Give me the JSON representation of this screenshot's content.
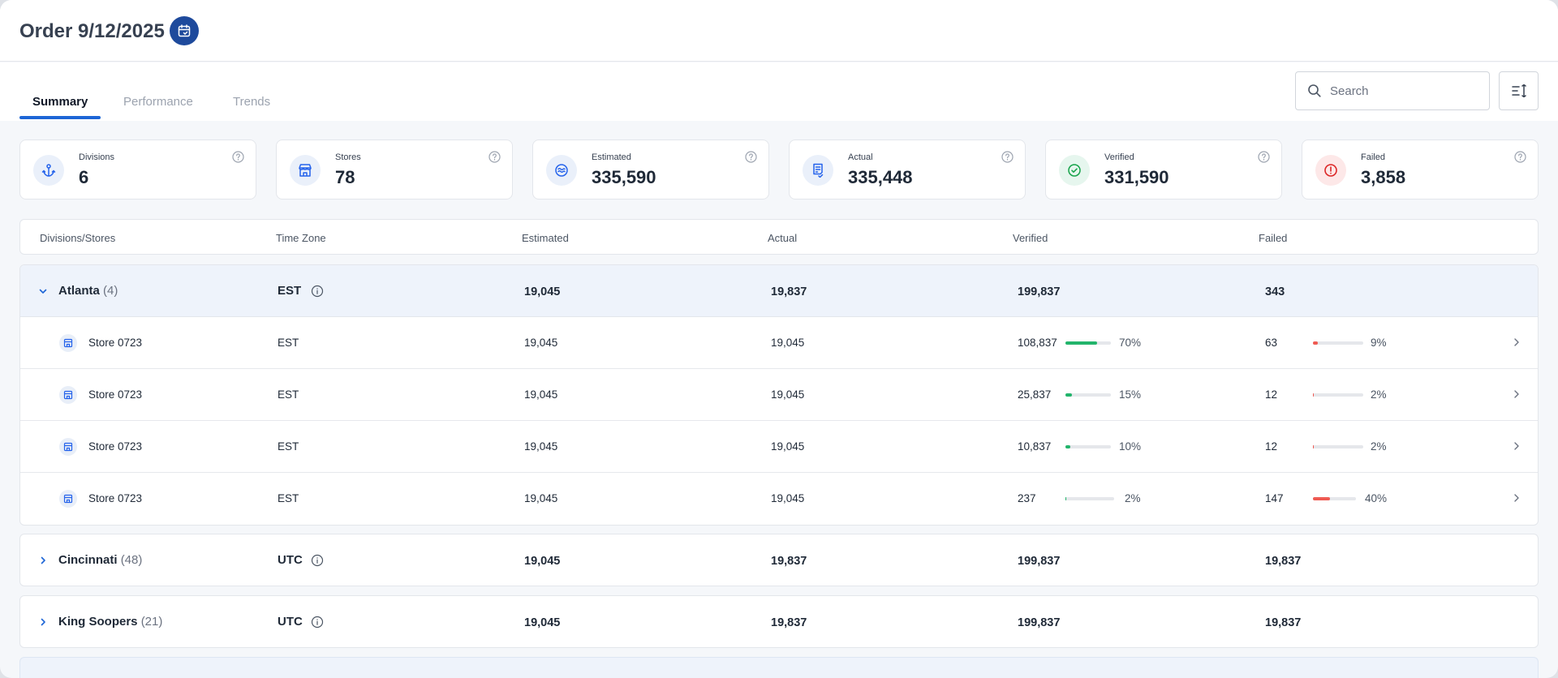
{
  "header": {
    "title": "Order 9/12/2025"
  },
  "tabs": [
    {
      "label": "Summary",
      "active": true
    },
    {
      "label": "Performance",
      "active": false
    },
    {
      "label": "Trends",
      "active": false
    }
  ],
  "search": {
    "placeholder": "Search",
    "value": ""
  },
  "cards": [
    {
      "label": "Divisions",
      "value": "6",
      "icon": "anchor-icon",
      "icon_bg": "#eaf0fa",
      "icon_color": "#2563eb"
    },
    {
      "label": "Stores",
      "value": "78",
      "icon": "store-icon",
      "icon_bg": "#eaf0fa",
      "icon_color": "#2563eb"
    },
    {
      "label": "Estimated",
      "value": "335,590",
      "icon": "estimate-icon",
      "icon_bg": "#eaf0fa",
      "icon_color": "#2563eb"
    },
    {
      "label": "Actual",
      "value": "335,448",
      "icon": "receipt-icon",
      "icon_bg": "#eaf0fa",
      "icon_color": "#2563eb"
    },
    {
      "label": "Verified",
      "value": "331,590",
      "icon": "check-circle-icon",
      "icon_bg": "#e6f6ee",
      "icon_color": "#16a34a"
    },
    {
      "label": "Failed",
      "value": "3,858",
      "icon": "alert-circle-icon",
      "icon_bg": "#fde8e8",
      "icon_color": "#dc2626"
    }
  ],
  "table": {
    "headers": [
      "Divisions/Stores",
      "Time Zone",
      "Estimated",
      "Actual",
      "Verified",
      "Failed"
    ],
    "groups": [
      {
        "name": "Atlanta",
        "count": "(4)",
        "timezone": "EST",
        "expanded": true,
        "estimated": "19,045",
        "actual": "19,837",
        "verified": "199,837",
        "failed": "343",
        "stores": [
          {
            "name": "Store 0723",
            "timezone": "EST",
            "estimated": "19,045",
            "actual": "19,045",
            "verified": "108,837",
            "verified_pct": "70%",
            "verified_frac": 0.7,
            "failed": "63",
            "failed_pct": "9%",
            "failed_frac": 0.09
          },
          {
            "name": "Store 0723",
            "timezone": "EST",
            "estimated": "19,045",
            "actual": "19,045",
            "verified": "25,837",
            "verified_pct": "15%",
            "verified_frac": 0.15,
            "failed": "12",
            "failed_pct": "2%",
            "failed_frac": 0.02
          },
          {
            "name": "Store 0723",
            "timezone": "EST",
            "estimated": "19,045",
            "actual": "19,045",
            "verified": "10,837",
            "verified_pct": "10%",
            "verified_frac": 0.1,
            "failed": "12",
            "failed_pct": "2%",
            "failed_frac": 0.02
          },
          {
            "name": "Store 0723",
            "timezone": "EST",
            "estimated": "19,045",
            "actual": "19,045",
            "verified": "237",
            "verified_pct": "2%",
            "verified_frac": 0.02,
            "failed": "147",
            "failed_pct": "40%",
            "failed_frac": 0.4
          }
        ]
      },
      {
        "name": "Cincinnati",
        "count": "(48)",
        "timezone": "UTC",
        "expanded": false,
        "estimated": "19,045",
        "actual": "19,837",
        "verified": "199,837",
        "failed": "19,837",
        "stores": []
      },
      {
        "name": "King Soopers",
        "count": "(21)",
        "timezone": "UTC",
        "expanded": false,
        "estimated": "19,045",
        "actual": "19,837",
        "verified": "199,837",
        "failed": "19,837",
        "stores": []
      }
    ]
  },
  "colors": {
    "accent": "#1d65d6",
    "brand_dark": "#1e4a9c",
    "success": "#22b46b",
    "danger": "#ef5a52"
  }
}
